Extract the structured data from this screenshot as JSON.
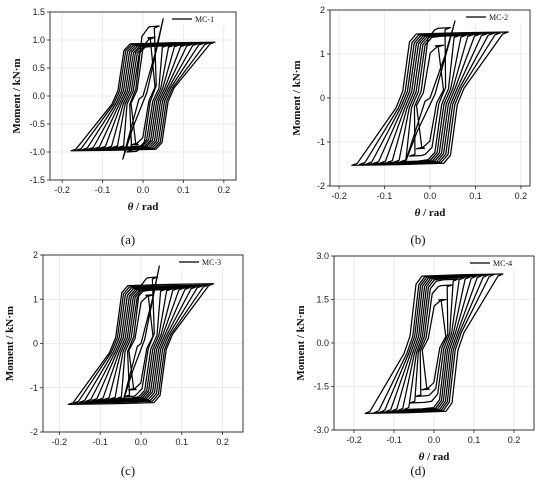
{
  "chart_data": [
    {
      "type": "line",
      "caption": "(a)",
      "legend": "MC-1",
      "legend_position": "top-right",
      "grid": true,
      "xlabel_symbol": "θ",
      "xlabel_unit": " / rad",
      "ylabel": "Moment / kN·m",
      "xlim": [
        -0.23,
        0.23
      ],
      "ylim": [
        -1.5,
        1.5
      ],
      "xticks": [
        "-0.2",
        "-0.1",
        "0.0",
        "0.1",
        "0.2"
      ],
      "xtick_values": [
        -0.2,
        -0.1,
        0.0,
        0.1,
        0.2
      ],
      "yticks": [
        "-1.5",
        "-1.0",
        "-0.5",
        "0.0",
        "0.5",
        "1.0",
        "1.5"
      ],
      "ytick_values": [
        -1.5,
        -1.0,
        -0.5,
        0.0,
        0.5,
        1.0,
        1.5
      ],
      "series": [
        {
          "name": "MC-1",
          "cycles": [
            {
              "theta": 0.03,
              "moment": 1.05
            },
            {
              "theta": 0.04,
              "moment": 1.25
            },
            {
              "theta": 0.05,
              "moment": 1.38
            },
            {
              "theta": 0.06,
              "moment": 0.9
            },
            {
              "theta": 0.075,
              "moment": 0.9
            },
            {
              "theta": 0.09,
              "moment": 0.91
            },
            {
              "theta": 0.105,
              "moment": 0.91
            },
            {
              "theta": 0.12,
              "moment": 0.92
            },
            {
              "theta": 0.135,
              "moment": 0.93
            },
            {
              "theta": 0.15,
              "moment": 0.94
            },
            {
              "theta": 0.165,
              "moment": 0.95
            },
            {
              "theta": 0.178,
              "moment": 0.96
            }
          ],
          "negative_peak_moment": -1.25
        }
      ]
    },
    {
      "type": "line",
      "caption": "(b)",
      "legend": "MC-2",
      "legend_position": "top-right",
      "grid": true,
      "xlabel_symbol": "θ",
      "xlabel_unit": " / rad",
      "ylabel": "Moment / kN·m",
      "xlim": [
        -0.22,
        0.22
      ],
      "ylim": [
        -2,
        2
      ],
      "xticks": [
        "-0.2",
        "-0.1",
        "0.0",
        "0.1",
        "0.2"
      ],
      "xtick_values": [
        -0.2,
        -0.1,
        0.0,
        0.1,
        0.2
      ],
      "yticks": [
        "-2",
        "-1",
        "0",
        "1",
        "2"
      ],
      "ytick_values": [
        -2,
        -1,
        0,
        1,
        2
      ],
      "series": [
        {
          "name": "MC-2",
          "cycles": [
            {
              "theta": 0.03,
              "moment": 1.2
            },
            {
              "theta": 0.045,
              "moment": 1.6
            },
            {
              "theta": 0.055,
              "moment": 1.75
            },
            {
              "theta": 0.065,
              "moment": 1.42
            },
            {
              "theta": 0.08,
              "moment": 1.43
            },
            {
              "theta": 0.095,
              "moment": 1.44
            },
            {
              "theta": 0.11,
              "moment": 1.45
            },
            {
              "theta": 0.125,
              "moment": 1.46
            },
            {
              "theta": 0.14,
              "moment": 1.47
            },
            {
              "theta": 0.155,
              "moment": 1.48
            },
            {
              "theta": 0.172,
              "moment": 1.5
            }
          ],
          "negative_peak_moment": -1.65
        }
      ]
    },
    {
      "type": "line",
      "caption": "(c)",
      "legend": "MC-3",
      "legend_position": "top-right",
      "grid": true,
      "xlabel_symbol": "",
      "xlabel_unit": "",
      "ylabel": "Moment / kN·m",
      "xlim": [
        -0.24,
        0.25
      ],
      "ylim": [
        -2,
        2
      ],
      "xticks": [
        "-0.2",
        "-0.1",
        "0.0",
        "0.1",
        "0.2"
      ],
      "xtick_values": [
        -0.2,
        -0.1,
        0.0,
        0.1,
        0.2
      ],
      "yticks": [
        "-2",
        "-1",
        "0",
        "1",
        "2"
      ],
      "ytick_values": [
        -2,
        -1,
        0,
        1,
        2
      ],
      "series": [
        {
          "name": "MC-3",
          "cycles": [
            {
              "theta": 0.03,
              "moment": 1.1
            },
            {
              "theta": 0.04,
              "moment": 1.5
            },
            {
              "theta": 0.045,
              "moment": 1.75
            },
            {
              "theta": 0.06,
              "moment": 1.22
            },
            {
              "theta": 0.075,
              "moment": 1.23
            },
            {
              "theta": 0.09,
              "moment": 1.24
            },
            {
              "theta": 0.105,
              "moment": 1.25
            },
            {
              "theta": 0.12,
              "moment": 1.26
            },
            {
              "theta": 0.135,
              "moment": 1.28
            },
            {
              "theta": 0.15,
              "moment": 1.3
            },
            {
              "theta": 0.165,
              "moment": 1.32
            },
            {
              "theta": 0.178,
              "moment": 1.35
            }
          ],
          "negative_peak_moment": -1.5
        }
      ]
    },
    {
      "type": "line",
      "caption": "(d)",
      "legend": "MC-4",
      "legend_position": "top-right",
      "grid": true,
      "xlabel_symbol": "θ",
      "xlabel_unit": " / rad",
      "ylabel": "Moment / kN·m",
      "xlim": [
        -0.25,
        0.25
      ],
      "ylim": [
        -3,
        3
      ],
      "xticks": [
        "-0.2",
        "-0.1",
        "0.0",
        "0.1",
        "0.2"
      ],
      "xtick_values": [
        -0.2,
        -0.1,
        0.0,
        0.1,
        0.2
      ],
      "yticks": [
        "-3.0",
        "-1.5",
        "0.0",
        "1.5",
        "3.0"
      ],
      "ytick_values": [
        -3.0,
        -1.5,
        0.0,
        1.5,
        3.0
      ],
      "series": [
        {
          "name": "MC-4",
          "cycles": [
            {
              "theta": 0.03,
              "moment": 1.5
            },
            {
              "theta": 0.045,
              "moment": 2.0
            },
            {
              "theta": 0.06,
              "moment": 2.2
            },
            {
              "theta": 0.075,
              "moment": 2.25
            },
            {
              "theta": 0.09,
              "moment": 2.28
            },
            {
              "theta": 0.105,
              "moment": 2.3
            },
            {
              "theta": 0.12,
              "moment": 2.32
            },
            {
              "theta": 0.135,
              "moment": 2.34
            },
            {
              "theta": 0.15,
              "moment": 2.36
            },
            {
              "theta": 0.172,
              "moment": 2.38
            }
          ],
          "negative_peak_moment": -2.3
        }
      ]
    }
  ]
}
